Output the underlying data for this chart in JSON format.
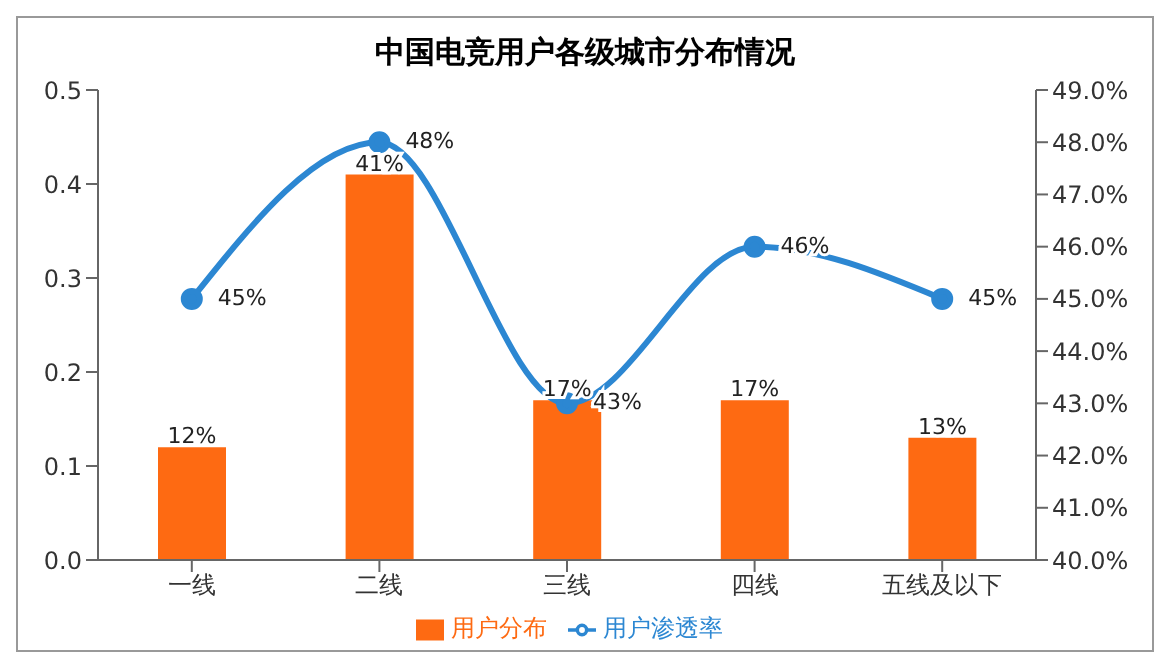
{
  "chart_data": {
    "type": "bar",
    "title": "中国电竞用户各级城市分布情况",
    "categories": [
      "一线",
      "二线",
      "三线",
      "四线",
      "五线及以下"
    ],
    "series": [
      {
        "name": "用户分布",
        "color": "#fe6a12",
        "values": [
          0.12,
          0.41,
          0.17,
          0.17,
          0.13
        ],
        "value_labels": [
          "12%",
          "41%",
          "17%",
          "17%",
          "13%"
        ]
      },
      {
        "name": "用户渗透率",
        "type": "line",
        "axis": "y2",
        "color": "#2c87d2",
        "values": [
          45,
          48,
          43,
          46,
          45
        ],
        "value_labels": [
          "45%",
          "48%",
          "43%",
          "46%",
          "45%"
        ]
      }
    ],
    "ylim": [
      0,
      0.5
    ],
    "yticks": [
      {
        "value": 0,
        "label": "0.0"
      },
      0.1,
      0.2,
      0.3,
      0.4,
      0.5
    ],
    "y2lim": [
      40,
      49
    ],
    "y2ticks": [
      {
        "value": 40,
        "label": "40.0%"
      },
      {
        "value": 41,
        "label": "41.0%"
      },
      {
        "value": 42,
        "label": "42.0%"
      },
      {
        "value": 43,
        "label": "43.0%"
      },
      {
        "value": 44,
        "label": "44.0%"
      },
      {
        "value": 45,
        "label": "45.0%"
      },
      {
        "value": 46,
        "label": "46.0%"
      },
      {
        "value": 47,
        "label": "47.0%"
      },
      {
        "value": 48,
        "label": "48.0%"
      },
      {
        "value": 49,
        "label": "49.0%"
      }
    ],
    "grid": false,
    "legend": "bottom",
    "marker": "circle",
    "line_style": "solid"
  }
}
